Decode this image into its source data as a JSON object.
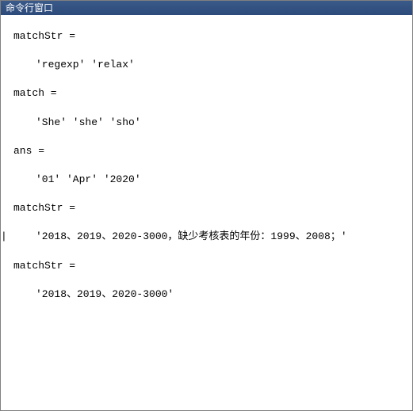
{
  "window": {
    "title": "命令行窗口"
  },
  "outputs": [
    {
      "var_label": "matchStr =",
      "value_text": "'regexp'    'relax'",
      "has_cursor": false
    },
    {
      "var_label": "match =",
      "value_text": "'She'    'she'    'sho'",
      "has_cursor": false
    },
    {
      "var_label": "ans =",
      "value_text": "'01'    'Apr'    '2020'",
      "has_cursor": false
    },
    {
      "var_label": "matchStr =",
      "value_text": "'2018、2019、2020-3000，缺少考核表的年份：1999、2008；'",
      "has_cursor": true
    },
    {
      "var_label": "matchStr =",
      "value_text": "'2018、2019、2020-3000'",
      "has_cursor": false
    }
  ],
  "colors": {
    "titlebar_bg_start": "#3a5a8a",
    "titlebar_bg_end": "#2c4a7a",
    "titlebar_text": "#ffffff",
    "content_bg": "#ffffff",
    "content_text": "#000000",
    "border": "#808080"
  },
  "typography": {
    "title_font": "SimSun",
    "content_font": "Courier New, SimSun, monospace",
    "title_fontsize": 12,
    "content_fontsize": 13
  }
}
